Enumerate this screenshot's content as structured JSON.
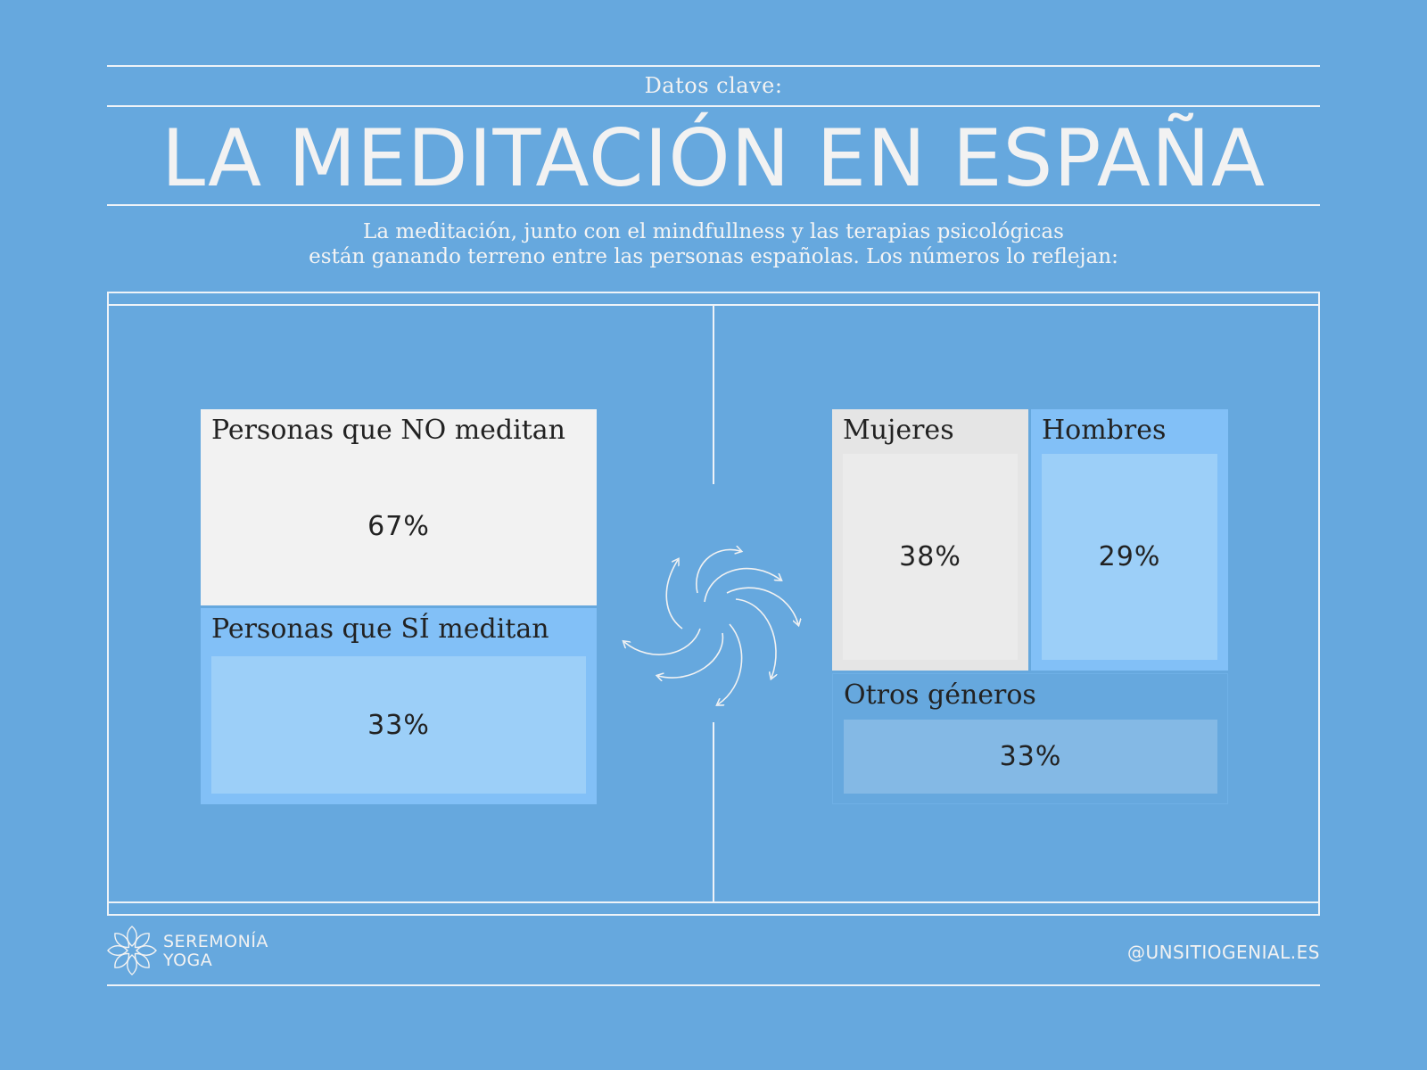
{
  "header": {
    "eyebrow": "Datos clave:",
    "title": "LA MEDITACIÓN EN ESPAÑA",
    "intro_line1": "La meditación, junto con el mindfullness y las terapias psicológicas",
    "intro_line2": "están ganando terreno entre las personas españolas. Los números lo reflejan:"
  },
  "chart_data": [
    {
      "type": "table",
      "categories": [
        "Personas que NO meditan",
        "Personas que SÍ meditan"
      ],
      "values": [
        67,
        33
      ],
      "labels": [
        "67%",
        "33%"
      ],
      "unit": "%"
    },
    {
      "type": "table",
      "categories": [
        "Mujeres",
        "Hombres",
        "Otros géneros"
      ],
      "values": [
        38,
        29,
        33
      ],
      "labels": [
        "38%",
        "29%",
        "33%"
      ],
      "unit": "%"
    }
  ],
  "colors": {
    "background": "#66a8de",
    "no_meditan": "#f2f2f2",
    "si_meditan": "#82c0f7",
    "si_meditan_inner": "#9ccff8",
    "mujeres": "#e5e5e5",
    "mujeres_inner": "#ebebeb",
    "hombres": "#82c0f7",
    "hombres_inner": "#9ccff8",
    "otros": "#66a8de",
    "otros_inner": "#84b9e5",
    "lines": "#eef3f8"
  },
  "icons": {
    "center": "spiral-arrows-icon",
    "logo": "lotus-flower-icon"
  },
  "footer": {
    "brand_line1": "SEREMONÍA",
    "brand_line2": "YOGA",
    "handle": "@UNSITIOGENIAL.ES"
  }
}
